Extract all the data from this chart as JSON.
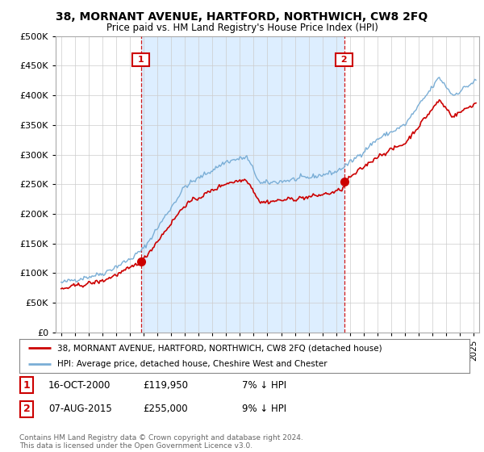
{
  "title": "38, MORNANT AVENUE, HARTFORD, NORTHWICH, CW8 2FQ",
  "subtitle": "Price paid vs. HM Land Registry's House Price Index (HPI)",
  "legend_line1": "38, MORNANT AVENUE, HARTFORD, NORTHWICH, CW8 2FQ (detached house)",
  "legend_line2": "HPI: Average price, detached house, Cheshire West and Chester",
  "footnote": "Contains HM Land Registry data © Crown copyright and database right 2024.\nThis data is licensed under the Open Government Licence v3.0.",
  "sale1_label": "1",
  "sale1_date": "16-OCT-2000",
  "sale1_price": "£119,950",
  "sale1_note": "7% ↓ HPI",
  "sale2_label": "2",
  "sale2_date": "07-AUG-2015",
  "sale2_price": "£255,000",
  "sale2_note": "9% ↓ HPI",
  "sale1_year": 2000.79,
  "sale2_year": 2015.59,
  "sale1_price_val": 119950,
  "sale2_price_val": 255000,
  "ylim": [
    0,
    500000
  ],
  "xlim_left": 1994.6,
  "xlim_right": 2025.4,
  "vline1_x": 2000.79,
  "vline2_x": 2015.59,
  "hpi_color": "#7aaed6",
  "price_color": "#cc0000",
  "vline_color": "#cc0000",
  "shade_color": "#ddeeff",
  "background_color": "#ffffff",
  "grid_color": "#cccccc"
}
